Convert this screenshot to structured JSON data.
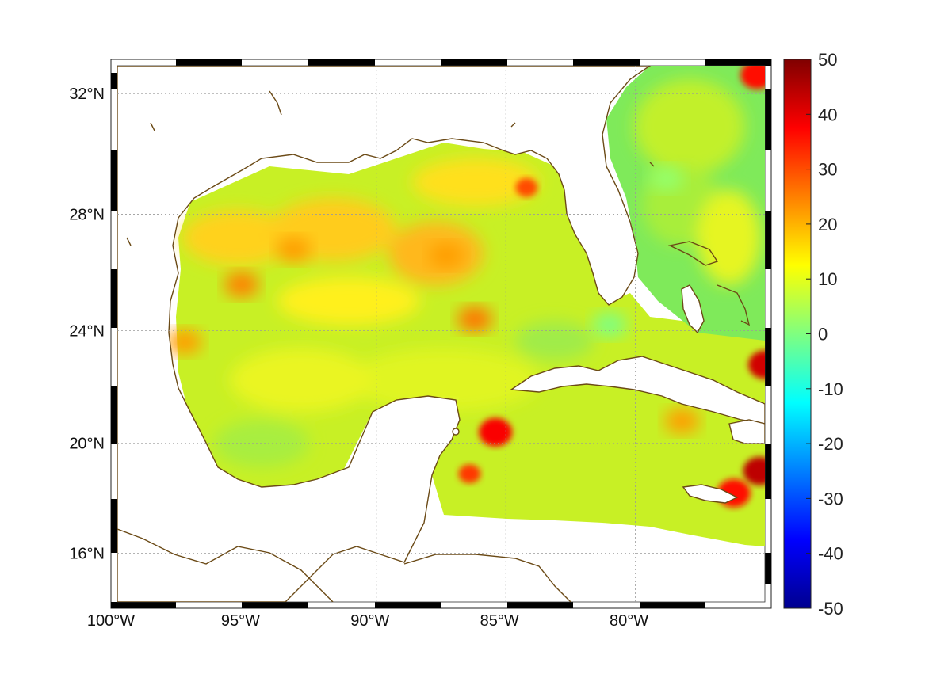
{
  "map": {
    "projection": "mercator",
    "lon_range": [
      -100,
      -75
    ],
    "lat_range": [
      14.2,
      32.9
    ],
    "colormap": "jet",
    "land_color": "#ffffff",
    "coastline_color": "#6b4a16",
    "grid": "dotted"
  },
  "axes": {
    "x_ticks": [
      {
        "value": -100,
        "label": "100°W"
      },
      {
        "value": -95,
        "label": "95°W"
      },
      {
        "value": -90,
        "label": "90°W"
      },
      {
        "value": -85,
        "label": "85°W"
      },
      {
        "value": -80,
        "label": "80°W"
      }
    ],
    "y_ticks": [
      {
        "value": 16,
        "label": "16°N"
      },
      {
        "value": 20,
        "label": "20°N"
      },
      {
        "value": 24,
        "label": "24°N"
      },
      {
        "value": 28,
        "label": "28°N"
      },
      {
        "value": 32,
        "label": "32°N"
      }
    ]
  },
  "colorbar": {
    "min": -50,
    "max": 50,
    "ticks": [
      {
        "value": 50,
        "label": "50"
      },
      {
        "value": 40,
        "label": "40"
      },
      {
        "value": 30,
        "label": "30"
      },
      {
        "value": 20,
        "label": "20"
      },
      {
        "value": 10,
        "label": "10"
      },
      {
        "value": 0,
        "label": "0"
      },
      {
        "value": -10,
        "label": "-10"
      },
      {
        "value": -20,
        "label": "-20"
      },
      {
        "value": -30,
        "label": "-30"
      },
      {
        "value": -40,
        "label": "-40"
      },
      {
        "value": -50,
        "label": "-50"
      }
    ]
  },
  "field": {
    "background_value": 8,
    "features": [
      {
        "lon": -95.2,
        "lat": 25.6,
        "value": 25
      },
      {
        "lon": -93.2,
        "lat": 26.8,
        "value": 22
      },
      {
        "lon": -87.3,
        "lat": 26.6,
        "value": 22
      },
      {
        "lon": -84.2,
        "lat": 28.9,
        "value": 30
      },
      {
        "lon": -86.2,
        "lat": 24.4,
        "value": 26
      },
      {
        "lon": -97.4,
        "lat": 23.6,
        "value": 22
      },
      {
        "lon": -85.4,
        "lat": 20.4,
        "value": 38
      },
      {
        "lon": -86.4,
        "lat": 18.9,
        "value": 32
      },
      {
        "lon": -75.3,
        "lat": 32.6,
        "value": 36
      },
      {
        "lon": -75.0,
        "lat": 22.8,
        "value": 42
      },
      {
        "lon": -75.2,
        "lat": 19.0,
        "value": 44
      },
      {
        "lon": -76.2,
        "lat": 18.2,
        "value": 36
      },
      {
        "lon": -78.2,
        "lat": 20.8,
        "value": 22
      },
      {
        "lon": -78.8,
        "lat": 29.2,
        "value": 2
      },
      {
        "lon": -81.0,
        "lat": 24.2,
        "value": 0
      }
    ]
  }
}
